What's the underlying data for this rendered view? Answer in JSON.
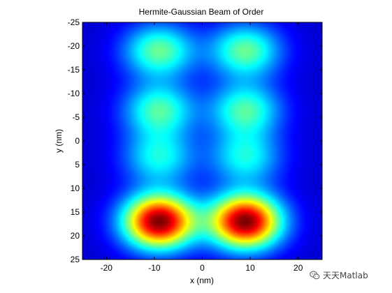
{
  "chart_data": {
    "type": "heatmap",
    "title": "Hermite-Gaussian Beam of Order",
    "xlabel": "x (nm)",
    "ylabel": "y (nm)",
    "xlim": [
      -25,
      25
    ],
    "ylim": [
      -25,
      25
    ],
    "y_direction": "reverse",
    "x_ticks": [
      "-20",
      "-10",
      "0",
      "10",
      "20"
    ],
    "y_ticks": [
      "-25",
      "-20",
      "-15",
      "-10",
      "-5",
      "0",
      "5",
      "10",
      "15",
      "20",
      "25"
    ],
    "colormap": "jet",
    "mode_order": {
      "m": 1,
      "n": 3
    },
    "lobes": [
      {
        "x": -9,
        "y": 17,
        "relative_intensity": 1.0
      },
      {
        "x": 9,
        "y": 17,
        "relative_intensity": 1.0
      },
      {
        "x": -9,
        "y": 3.5,
        "relative_intensity": 0.33
      },
      {
        "x": 9,
        "y": 3.5,
        "relative_intensity": 0.33
      },
      {
        "x": -9,
        "y": -6.5,
        "relative_intensity": 0.4
      },
      {
        "x": 9,
        "y": -6.5,
        "relative_intensity": 0.4
      },
      {
        "x": -9,
        "y": -19,
        "relative_intensity": 0.43
      },
      {
        "x": 9,
        "y": -19,
        "relative_intensity": 0.43
      }
    ]
  },
  "watermark": {
    "icon": "wechat-icon",
    "text": "天天Matlab"
  }
}
